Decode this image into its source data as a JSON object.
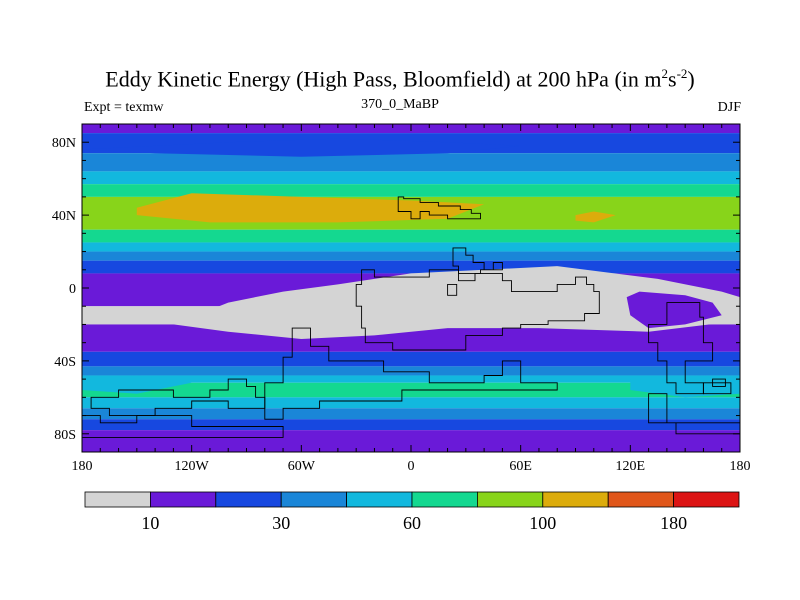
{
  "chart_data": {
    "type": "heatmap",
    "title_main": "Eddy Kinetic Energy (High Pass, Bloomfield) at 200 hPa (in m",
    "title_sup1": "2",
    "title_mid": "s",
    "title_sup2": "-2",
    "title_end": ")",
    "subtitle_left": "Expt = texmw",
    "subtitle_center": "370_0_MaBP",
    "subtitle_right": "DJF",
    "x_range": [
      -180,
      180
    ],
    "y_range": [
      -90,
      90
    ],
    "x_ticks": [
      {
        "value": -180,
        "label": "180"
      },
      {
        "value": -120,
        "label": "120W"
      },
      {
        "value": -60,
        "label": "60W"
      },
      {
        "value": 0,
        "label": "0"
      },
      {
        "value": 60,
        "label": "60E"
      },
      {
        "value": 120,
        "label": "120E"
      },
      {
        "value": 180,
        "label": "180"
      }
    ],
    "y_ticks": [
      {
        "value": 80,
        "label": "80N"
      },
      {
        "value": 40,
        "label": "40N"
      },
      {
        "value": 0,
        "label": "0"
      },
      {
        "value": -40,
        "label": "40S"
      },
      {
        "value": -80,
        "label": "80S"
      }
    ],
    "colorbar": {
      "colors": [
        "#d4d4d4",
        "#6a1ad8",
        "#1748e0",
        "#1a86d8",
        "#12b8de",
        "#14d890",
        "#88d41a",
        "#dcac0c",
        "#e0561a",
        "#dc1414"
      ],
      "labels": [
        {
          "boundary": 1,
          "text": "10"
        },
        {
          "boundary": 3,
          "text": "30"
        },
        {
          "boundary": 5,
          "text": "60"
        },
        {
          "boundary": 7,
          "text": "100"
        },
        {
          "boundary": 9,
          "text": "180"
        }
      ]
    },
    "zonal_bands": [
      {
        "lat_from": 90,
        "lat_to": 85,
        "level": 1
      },
      {
        "lat_from": 85,
        "lat_to": 74,
        "level": 2
      },
      {
        "lat_from": 74,
        "lat_to": 64,
        "level": 3
      },
      {
        "lat_from": 64,
        "lat_to": 57,
        "level": 4
      },
      {
        "lat_from": 57,
        "lat_to": 50,
        "level": 5
      },
      {
        "lat_from": 50,
        "lat_to": 32,
        "level": 6
      },
      {
        "lat_from": 32,
        "lat_to": 25,
        "level": 5
      },
      {
        "lat_from": 25,
        "lat_to": 20,
        "level": 4
      },
      {
        "lat_from": 20,
        "lat_to": 15,
        "level": 3
      },
      {
        "lat_from": 15,
        "lat_to": 8,
        "level": 2
      },
      {
        "lat_from": 8,
        "lat_to": -10,
        "level": 1
      },
      {
        "lat_from": -10,
        "lat_to": -20,
        "level": 0
      },
      {
        "lat_from": -20,
        "lat_to": -35,
        "level": 1
      },
      {
        "lat_from": -35,
        "lat_to": -43,
        "level": 2
      },
      {
        "lat_from": -43,
        "lat_to": -48,
        "level": 3
      },
      {
        "lat_from": -48,
        "lat_to": -52,
        "level": 4
      },
      {
        "lat_from": -52,
        "lat_to": -60,
        "level": 5
      },
      {
        "lat_from": -60,
        "lat_to": -66,
        "level": 4
      },
      {
        "lat_from": -66,
        "lat_to": -72,
        "level": 3
      },
      {
        "lat_from": -72,
        "lat_to": -78,
        "level": 2
      },
      {
        "lat_from": -78,
        "lat_to": -90,
        "level": 1
      }
    ],
    "features": [
      {
        "level": 7,
        "points": [
          [
            -150,
            44
          ],
          [
            -120,
            52
          ],
          [
            -60,
            50
          ],
          [
            0,
            48
          ],
          [
            40,
            46
          ],
          [
            20,
            38
          ],
          [
            -40,
            36
          ],
          [
            -110,
            36
          ],
          [
            -150,
            40
          ]
        ]
      },
      {
        "level": 7,
        "points": [
          [
            90,
            40
          ],
          [
            100,
            42
          ],
          [
            112,
            40
          ],
          [
            100,
            36
          ],
          [
            90,
            37
          ]
        ]
      },
      {
        "level": 0,
        "points": [
          [
            -40,
            2
          ],
          [
            0,
            8
          ],
          [
            40,
            10
          ],
          [
            80,
            12
          ],
          [
            135,
            5
          ],
          [
            170,
            -2
          ],
          [
            180,
            -5
          ],
          [
            180,
            -18
          ],
          [
            130,
            -24
          ],
          [
            70,
            -22
          ],
          [
            20,
            -22
          ],
          [
            -20,
            -26
          ],
          [
            -60,
            -28
          ],
          [
            -100,
            -24
          ],
          [
            -130,
            -20
          ],
          [
            -100,
            -8
          ],
          [
            -70,
            -2
          ]
        ]
      },
      {
        "level": 1,
        "points": [
          [
            125,
            -2
          ],
          [
            150,
            -4
          ],
          [
            165,
            -8
          ],
          [
            170,
            -15
          ],
          [
            150,
            -20
          ],
          [
            130,
            -22
          ],
          [
            120,
            -15
          ],
          [
            118,
            -5
          ]
        ]
      },
      {
        "level": 4,
        "points": [
          [
            -180,
            -50
          ],
          [
            -150,
            -48
          ],
          [
            -120,
            -52
          ],
          [
            -150,
            -58
          ],
          [
            -180,
            -56
          ]
        ]
      },
      {
        "level": 4,
        "points": [
          [
            120,
            -50
          ],
          [
            160,
            -48
          ],
          [
            180,
            -52
          ],
          [
            180,
            -58
          ],
          [
            150,
            -60
          ],
          [
            120,
            -56
          ]
        ]
      },
      {
        "level": 2,
        "points": [
          [
            -180,
            76
          ],
          [
            -100,
            80
          ],
          [
            -40,
            82
          ],
          [
            20,
            80
          ],
          [
            60,
            78
          ],
          [
            20,
            74
          ],
          [
            -60,
            72
          ],
          [
            -140,
            74
          ]
        ]
      }
    ],
    "land_outlines": [
      [
        [
          -7,
          50
        ],
        [
          -4,
          50
        ],
        [
          -4,
          49
        ],
        [
          5,
          49
        ],
        [
          5,
          47
        ],
        [
          15,
          47
        ],
        [
          15,
          45
        ],
        [
          27,
          45
        ],
        [
          27,
          43
        ],
        [
          33,
          43
        ],
        [
          33,
          41
        ],
        [
          38,
          41
        ],
        [
          38,
          38
        ],
        [
          20,
          38
        ],
        [
          20,
          40
        ],
        [
          10,
          40
        ],
        [
          10,
          42
        ],
        [
          5,
          42
        ],
        [
          5,
          38
        ],
        [
          0,
          38
        ],
        [
          0,
          42
        ],
        [
          -7,
          42
        ]
      ],
      [
        [
          -27,
          10
        ],
        [
          -20,
          10
        ],
        [
          -20,
          6
        ],
        [
          10,
          6
        ],
        [
          10,
          10
        ],
        [
          26,
          10
        ],
        [
          26,
          4
        ],
        [
          35,
          4
        ],
        [
          35,
          8
        ],
        [
          50,
          8
        ],
        [
          50,
          4
        ],
        [
          55,
          4
        ],
        [
          55,
          2
        ],
        [
          55,
          -2
        ],
        [
          80,
          -2
        ],
        [
          80,
          2
        ],
        [
          90,
          2
        ],
        [
          90,
          6
        ],
        [
          96,
          6
        ],
        [
          96,
          2
        ],
        [
          100,
          2
        ],
        [
          100,
          -2
        ],
        [
          103,
          -2
        ],
        [
          103,
          -14
        ],
        [
          95,
          -14
        ],
        [
          95,
          -18
        ],
        [
          75,
          -18
        ],
        [
          75,
          -20
        ],
        [
          60,
          -20
        ],
        [
          60,
          -22
        ],
        [
          50,
          -22
        ],
        [
          50,
          -26
        ],
        [
          30,
          -26
        ],
        [
          30,
          -34
        ],
        [
          -10,
          -34
        ],
        [
          -10,
          -30
        ],
        [
          -25,
          -30
        ],
        [
          -25,
          -22
        ],
        [
          -27,
          -22
        ],
        [
          -27,
          -10
        ],
        [
          -30,
          -10
        ],
        [
          -30,
          2
        ],
        [
          -27,
          2
        ]
      ],
      [
        [
          23,
          22
        ],
        [
          30,
          22
        ],
        [
          30,
          18
        ],
        [
          34,
          18
        ],
        [
          34,
          14
        ],
        [
          40,
          14
        ],
        [
          40,
          10
        ],
        [
          45,
          10
        ],
        [
          45,
          14
        ],
        [
          50,
          14
        ],
        [
          50,
          10
        ],
        [
          38,
          10
        ],
        [
          38,
          8
        ],
        [
          26,
          8
        ],
        [
          26,
          12
        ],
        [
          23,
          12
        ]
      ],
      [
        [
          20,
          2
        ],
        [
          25,
          2
        ],
        [
          25,
          -4
        ],
        [
          20,
          -4
        ]
      ],
      [
        [
          140,
          -8
        ],
        [
          158,
          -8
        ],
        [
          158,
          -16
        ],
        [
          160,
          -16
        ],
        [
          160,
          -30
        ],
        [
          165,
          -30
        ],
        [
          165,
          -40
        ],
        [
          150,
          -40
        ],
        [
          150,
          -52
        ],
        [
          160,
          -52
        ],
        [
          160,
          -58
        ],
        [
          145,
          -58
        ],
        [
          145,
          -52
        ],
        [
          140,
          -52
        ],
        [
          140,
          -40
        ],
        [
          135,
          -40
        ],
        [
          135,
          -30
        ],
        [
          130,
          -30
        ],
        [
          130,
          -20
        ],
        [
          140,
          -20
        ]
      ],
      [
        [
          -100,
          -50
        ],
        [
          -90,
          -50
        ],
        [
          -90,
          -54
        ],
        [
          -85,
          -54
        ],
        [
          -85,
          -60
        ],
        [
          -80,
          -60
        ],
        [
          -80,
          -66
        ],
        [
          -100,
          -66
        ],
        [
          -100,
          -62
        ],
        [
          -120,
          -62
        ],
        [
          -120,
          -66
        ],
        [
          -140,
          -66
        ],
        [
          -140,
          -70
        ],
        [
          -165,
          -70
        ],
        [
          -165,
          -66
        ],
        [
          -175,
          -66
        ],
        [
          -175,
          -60
        ],
        [
          -160,
          -60
        ],
        [
          -160,
          -56
        ],
        [
          -130,
          -56
        ],
        [
          -130,
          -60
        ],
        [
          -110,
          -60
        ],
        [
          -110,
          -56
        ],
        [
          -100,
          -56
        ]
      ],
      [
        [
          -65,
          -22
        ],
        [
          -55,
          -22
        ],
        [
          -55,
          -32
        ],
        [
          -45,
          -32
        ],
        [
          -45,
          -40
        ],
        [
          -15,
          -40
        ],
        [
          -15,
          -46
        ],
        [
          10,
          -46
        ],
        [
          10,
          -52
        ],
        [
          40,
          -52
        ],
        [
          40,
          -48
        ],
        [
          50,
          -48
        ],
        [
          50,
          -40
        ],
        [
          60,
          -40
        ],
        [
          60,
          -52
        ],
        [
          80,
          -52
        ],
        [
          80,
          -56
        ],
        [
          -5,
          -56
        ],
        [
          -5,
          -62
        ],
        [
          -50,
          -62
        ],
        [
          -50,
          -66
        ],
        [
          -70,
          -66
        ],
        [
          -70,
          -72
        ],
        [
          -80,
          -72
        ],
        [
          -80,
          -52
        ],
        [
          -70,
          -52
        ],
        [
          -70,
          -38
        ],
        [
          -65,
          -38
        ]
      ],
      [
        [
          -180,
          -70
        ],
        [
          -170,
          -70
        ],
        [
          -170,
          -74
        ],
        [
          -150,
          -74
        ],
        [
          -150,
          -70
        ],
        [
          -120,
          -70
        ],
        [
          -120,
          -76
        ],
        [
          -70,
          -76
        ],
        [
          -70,
          -82
        ],
        [
          -180,
          -82
        ]
      ],
      [
        [
          160,
          -52
        ],
        [
          175,
          -52
        ],
        [
          175,
          -58
        ],
        [
          160,
          -58
        ]
      ],
      [
        [
          130,
          -58
        ],
        [
          140,
          -58
        ],
        [
          140,
          -74
        ],
        [
          145,
          -74
        ],
        [
          145,
          -80
        ],
        [
          180,
          -80
        ],
        [
          180,
          -74
        ],
        [
          130,
          -74
        ]
      ],
      [
        [
          165,
          -50
        ],
        [
          172,
          -50
        ],
        [
          172,
          -54
        ],
        [
          165,
          -54
        ]
      ]
    ]
  }
}
